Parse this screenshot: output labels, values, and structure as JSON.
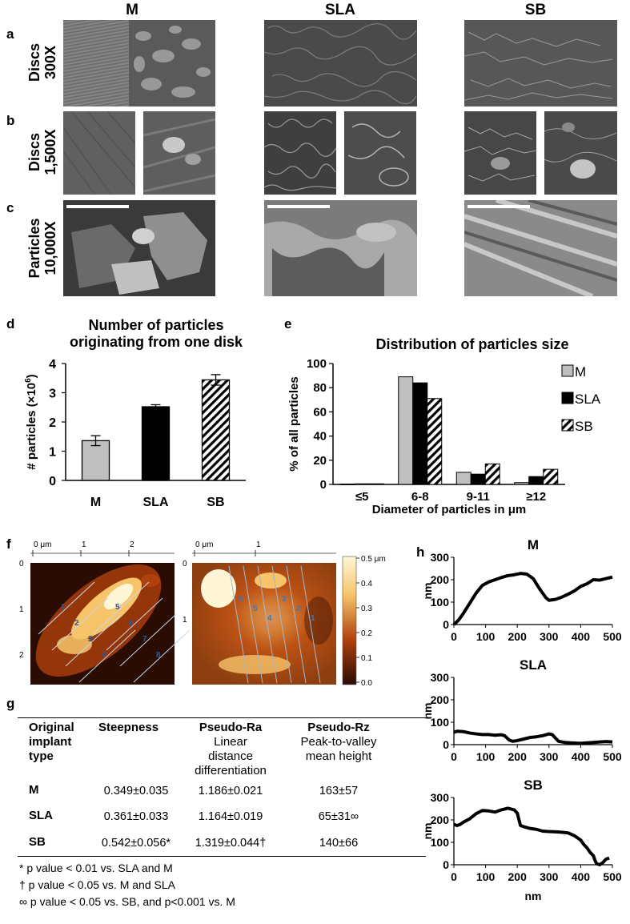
{
  "panel_letters": {
    "a": "a",
    "b": "b",
    "c": "c",
    "d": "d",
    "e": "e",
    "f": "f",
    "g": "g",
    "h": "h"
  },
  "columns": [
    "M",
    "SLA",
    "SB"
  ],
  "rows": {
    "a": [
      "Discs",
      "300X"
    ],
    "b": [
      "Discs",
      "1,500X"
    ],
    "c": [
      "Particles",
      "10,000X"
    ]
  },
  "chart_data": [
    {
      "id": "d",
      "type": "bar",
      "title": "Number of particles originating from one disk",
      "title_lines": [
        "Number of particles",
        "originating from one disk"
      ],
      "ylabel": "# particles (×10⁶)",
      "ylabel_main": "# particles (×10",
      "ylabel_sup": "6",
      "ylabel_end": ")",
      "categories": [
        "M",
        "SLA",
        "SB"
      ],
      "values": [
        1.36,
        2.52,
        3.44
      ],
      "errors": [
        0.17,
        0.07,
        0.18
      ],
      "ylim": [
        0,
        4
      ],
      "yticks": [
        "0",
        "1",
        "2",
        "3",
        "4"
      ],
      "fills": [
        "#bfbfbf",
        "#000000",
        "hatch"
      ]
    },
    {
      "id": "e",
      "type": "bar",
      "title": "Distribution of particles size",
      "xlabel": "Diameter of particles in μm",
      "ylabel": "% of all particles",
      "categories": [
        "≤5",
        "6-8",
        "9-11",
        "≥12"
      ],
      "series": [
        {
          "name": "M",
          "values": [
            0.3,
            89,
            10,
            1.5
          ]
        },
        {
          "name": "SLA",
          "values": [
            0.5,
            84,
            8.5,
            6.5
          ]
        },
        {
          "name": "SB",
          "values": [
            0.5,
            71,
            17,
            12.5
          ]
        }
      ],
      "ylim": [
        0,
        100
      ],
      "yticks": [
        "0",
        "20",
        "40",
        "60",
        "80",
        "100"
      ],
      "legend": "right"
    },
    {
      "id": "h-M",
      "type": "line",
      "title": "M",
      "xlabel": "",
      "ylabel": "nm",
      "xlim": [
        0,
        500
      ],
      "ylim": [
        0,
        300
      ],
      "xticks": [
        "0",
        "100",
        "200",
        "300",
        "400",
        "500"
      ],
      "yticks": [
        "0",
        "100",
        "200",
        "300"
      ],
      "x": [
        0,
        15,
        30,
        50,
        70,
        90,
        110,
        130,
        150,
        170,
        190,
        210,
        230,
        250,
        270,
        290,
        300,
        320,
        340,
        360,
        380,
        400,
        420,
        440,
        460,
        480,
        500
      ],
      "y": [
        0,
        20,
        50,
        95,
        140,
        175,
        190,
        200,
        210,
        218,
        222,
        228,
        225,
        205,
        160,
        120,
        108,
        112,
        122,
        135,
        150,
        170,
        182,
        200,
        198,
        205,
        212
      ]
    },
    {
      "id": "h-SLA",
      "type": "line",
      "title": "SLA",
      "xlabel": "",
      "ylabel": "nm",
      "xlim": [
        0,
        500
      ],
      "ylim": [
        0,
        300
      ],
      "xticks": [
        "0",
        "100",
        "200",
        "300",
        "400",
        "500"
      ],
      "yticks": [
        "0",
        "100",
        "200",
        "300"
      ],
      "x": [
        0,
        10,
        30,
        50,
        70,
        90,
        110,
        130,
        150,
        160,
        175,
        185,
        200,
        220,
        240,
        260,
        280,
        300,
        310,
        320,
        330,
        350,
        370,
        400,
        420,
        440,
        460,
        480,
        500
      ],
      "y": [
        55,
        60,
        58,
        52,
        48,
        45,
        45,
        42,
        44,
        40,
        20,
        15,
        18,
        25,
        32,
        35,
        40,
        48,
        45,
        30,
        15,
        10,
        8,
        6,
        8,
        10,
        12,
        14,
        12
      ]
    },
    {
      "id": "h-SB",
      "type": "line",
      "title": "SB",
      "xlabel": "nm",
      "ylabel": "nm",
      "xlim": [
        0,
        500
      ],
      "ylim": [
        0,
        300
      ],
      "xticks": [
        "0",
        "100",
        "200",
        "300",
        "400",
        "500"
      ],
      "yticks": [
        "0",
        "100",
        "200",
        "300"
      ],
      "x": [
        0,
        10,
        20,
        30,
        50,
        70,
        90,
        110,
        130,
        150,
        170,
        190,
        200,
        210,
        220,
        240,
        260,
        280,
        300,
        320,
        340,
        360,
        380,
        400,
        410,
        420,
        430,
        440,
        445,
        450,
        460,
        470,
        480,
        490
      ],
      "y": [
        180,
        175,
        180,
        190,
        205,
        228,
        242,
        240,
        235,
        245,
        252,
        245,
        230,
        175,
        170,
        162,
        158,
        150,
        148,
        147,
        145,
        142,
        130,
        110,
        90,
        75,
        55,
        40,
        20,
        5,
        0,
        10,
        25,
        30
      ]
    }
  ],
  "afm": {
    "left_axis_top": [
      "0 μm",
      "1",
      "2"
    ],
    "left_axis_side": [
      "0",
      "1",
      "2"
    ],
    "left_lines": [
      "1",
      "2",
      "3",
      "4",
      "5",
      "6",
      "7",
      "8"
    ],
    "right_axis_top": [
      "0 μm",
      "1"
    ],
    "right_axis_side": [
      "0",
      "1"
    ],
    "right_lines": [
      "1",
      "2",
      "3",
      "4",
      "5",
      "6"
    ],
    "scale_labels": [
      "0.5 μm",
      "0.4",
      "0.3",
      "0.2",
      "0.1",
      "0.0"
    ],
    "colors": {
      "dark": "#2a0c02",
      "mid": "#b0400c",
      "light": "#f7c46a",
      "white": "#fff6d8"
    }
  },
  "table": {
    "headers": [
      {
        "bold": [
          "Original",
          "implant",
          "type"
        ]
      },
      {
        "bold": [
          "Steepness"
        ]
      },
      {
        "bold": [
          "Pseudo-Ra"
        ],
        "sub": [
          "Linear",
          "distance",
          "differentiation"
        ]
      },
      {
        "bold": [
          "Pseudo-Rz"
        ],
        "sub": [
          "Peak-to-valley",
          "mean height"
        ]
      }
    ],
    "rows": [
      {
        "type": "M",
        "steepness": "0.349±0.035",
        "ra": "1.186±0.021",
        "rz": "163±57"
      },
      {
        "type": "SLA",
        "steepness": "0.361±0.033",
        "ra": "1.164±0.019",
        "rz": "65±31∞"
      },
      {
        "type": "SB",
        "steepness": "0.542±0.056*",
        "ra": "1.319±0.044†",
        "rz": "140±66"
      }
    ],
    "notes": [
      "*  p value < 0.01 vs. SLA and M",
      "†  p value < 0.05 vs. M and SLA",
      "∞  p value < 0.05 vs. SB, and p<0.001 vs. M"
    ]
  }
}
